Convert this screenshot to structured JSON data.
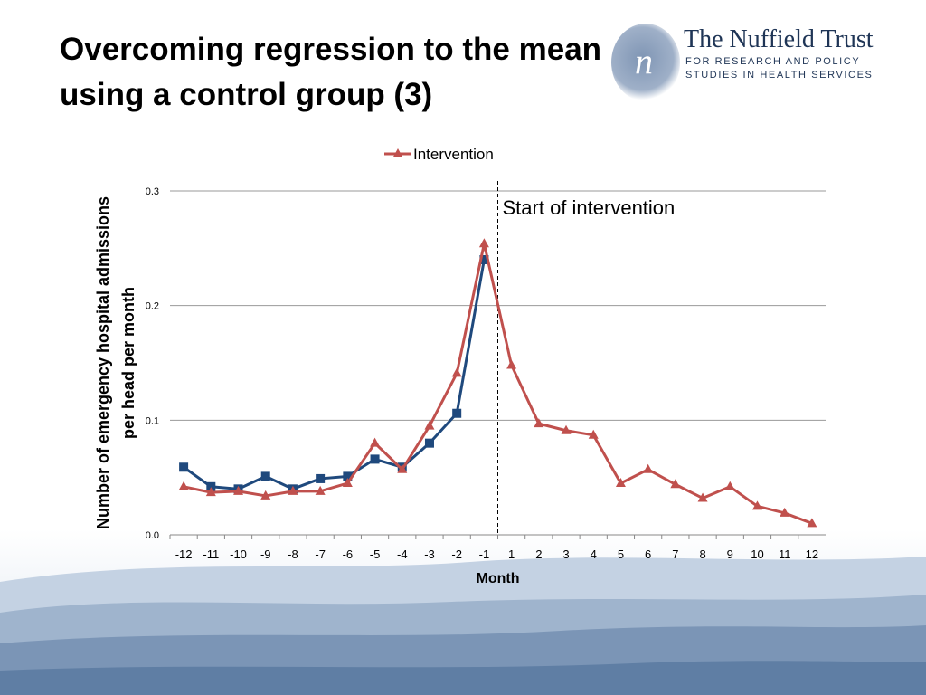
{
  "slide": {
    "title_line1": "Overcoming regression to the mean",
    "title_line2": "using a control group (3)"
  },
  "logo": {
    "name": "The Nuffield Trust",
    "tagline_line1": "FOR RESEARCH AND POLICY",
    "tagline_line2": "STUDIES IN HEALTH SERVICES",
    "brand_color": "#1f3556"
  },
  "chart_data": {
    "type": "line",
    "title": "",
    "xlabel": "Month",
    "ylabel_line1": "Number of emergency hospital admissions",
    "ylabel_line2": "per head per month",
    "categories": [
      "-12",
      "-11",
      "-10",
      "-9",
      "-8",
      "-7",
      "-6",
      "-5",
      "-4",
      "-3",
      "-2",
      "-1",
      "1",
      "2",
      "3",
      "4",
      "5",
      "6",
      "7",
      "8",
      "9",
      "10",
      "11",
      "12"
    ],
    "ylim": [
      0,
      0.3
    ],
    "yticks": [
      "0.0",
      "0.1",
      "0.2",
      "0.3"
    ],
    "grid": true,
    "legend_position": "top",
    "series": [
      {
        "name": "Intervention",
        "color": "#c0504d",
        "marker": "triangle",
        "in_legend": true,
        "values": [
          0.042,
          0.037,
          0.038,
          0.034,
          0.038,
          0.038,
          0.045,
          0.08,
          0.057,
          0.095,
          0.141,
          0.254,
          0.148,
          0.097,
          0.091,
          0.087,
          0.045,
          0.057,
          0.044,
          0.032,
          0.042,
          0.025,
          0.019,
          0.01
        ]
      },
      {
        "color": "#1f497d",
        "marker": "square",
        "in_legend": false,
        "values": [
          0.059,
          0.042,
          0.04,
          0.051,
          0.04,
          0.049,
          0.051,
          0.066,
          0.059,
          0.08,
          0.106,
          0.24,
          null,
          null,
          null,
          null,
          null,
          null,
          null,
          null,
          null,
          null,
          null,
          null
        ]
      }
    ],
    "annotation": {
      "text": "Start of intervention",
      "between": [
        "-1",
        "1"
      ]
    }
  }
}
